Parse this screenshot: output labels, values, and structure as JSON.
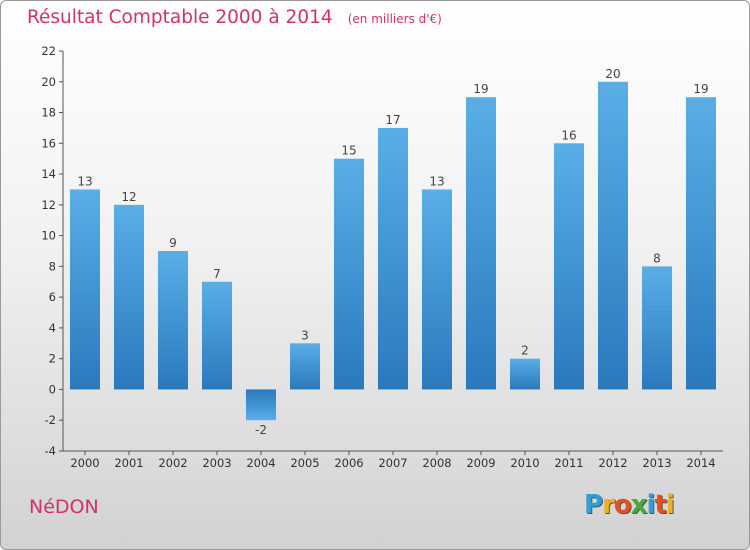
{
  "chart_data": {
    "type": "bar",
    "title": "Résultat Comptable 2000 à 2014",
    "subtitle": "(en milliers d'€)",
    "categories": [
      "2000",
      "2001",
      "2002",
      "2003",
      "2004",
      "2005",
      "2006",
      "2007",
      "2008",
      "2009",
      "2010",
      "2011",
      "2012",
      "2013",
      "2014"
    ],
    "values": [
      13,
      12,
      9,
      7,
      -2,
      3,
      15,
      17,
      13,
      19,
      2,
      16,
      20,
      8,
      19
    ],
    "data_labels": [
      "13",
      "12",
      "9",
      "7",
      "-2",
      "3",
      "15",
      "17",
      "13",
      "19",
      "2",
      "16",
      "20",
      "8",
      "19"
    ],
    "yticks": [
      "-4",
      "-2",
      "0",
      "2",
      "4",
      "6",
      "8",
      "10",
      "12",
      "14",
      "16",
      "18",
      "20",
      "22"
    ],
    "ylim": [
      -4,
      22
    ],
    "grid": false,
    "bar_color": "#3d8ed4",
    "bar_color_light": "#5aaee6"
  },
  "commune": "NéDON",
  "logo": {
    "letters": [
      "P",
      "r",
      "o",
      "x",
      "i",
      "t",
      "i"
    ],
    "colors": [
      "#2e9fd8",
      "#f2b11c",
      "#e84f1e",
      "#4aa83e",
      "#2e9fd8",
      "#e84f1e",
      "#f2b11c"
    ]
  },
  "colors": {
    "title": "#d4306a"
  }
}
